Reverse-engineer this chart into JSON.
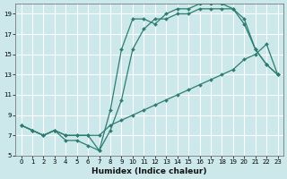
{
  "xlabel": "Humidex (Indice chaleur)",
  "bg_color": "#cce8ea",
  "grid_color": "#b0d4d8",
  "line_color": "#2d7d72",
  "xlim": [
    -0.5,
    23.5
  ],
  "ylim": [
    5.0,
    20.0
  ],
  "yticks": [
    5,
    7,
    9,
    11,
    13,
    15,
    17,
    19
  ],
  "xticks": [
    0,
    1,
    2,
    3,
    4,
    5,
    6,
    7,
    8,
    9,
    10,
    11,
    12,
    13,
    14,
    15,
    16,
    17,
    18,
    19,
    20,
    21,
    22,
    23
  ],
  "series1_x": [
    0,
    1,
    2,
    3,
    4,
    5,
    6,
    7,
    8,
    9,
    10,
    11,
    12,
    13,
    14,
    15,
    16,
    17,
    18,
    19,
    20,
    21,
    22,
    23
  ],
  "series1_y": [
    8.0,
    7.5,
    7.0,
    7.5,
    7.0,
    7.0,
    7.0,
    7.0,
    8.0,
    8.5,
    9.0,
    9.5,
    10.0,
    10.5,
    11.0,
    11.5,
    12.0,
    12.5,
    13.0,
    13.5,
    14.5,
    15.0,
    16.0,
    13.0
  ],
  "series2_x": [
    0,
    1,
    2,
    3,
    4,
    5,
    6,
    7,
    8,
    9,
    10,
    11,
    12,
    13,
    14,
    15,
    16,
    17,
    18,
    19,
    20,
    21,
    22,
    23
  ],
  "series2_y": [
    8.0,
    7.5,
    7.0,
    7.5,
    7.0,
    7.0,
    7.0,
    5.5,
    7.5,
    10.5,
    15.5,
    17.5,
    18.5,
    18.5,
    19.0,
    19.0,
    19.5,
    19.5,
    19.5,
    19.5,
    18.0,
    15.5,
    14.0,
    13.0
  ],
  "series3_x": [
    0,
    1,
    2,
    3,
    4,
    5,
    6,
    7,
    8,
    9,
    10,
    11,
    12,
    13,
    14,
    15,
    16,
    17,
    18,
    19,
    20,
    21,
    22,
    23
  ],
  "series3_y": [
    8.0,
    7.5,
    7.0,
    7.5,
    6.5,
    6.5,
    6.0,
    5.5,
    9.5,
    15.5,
    18.5,
    18.5,
    18.0,
    19.0,
    19.5,
    19.5,
    20.0,
    20.0,
    20.0,
    19.5,
    18.5,
    15.5,
    14.0,
    13.0
  ]
}
